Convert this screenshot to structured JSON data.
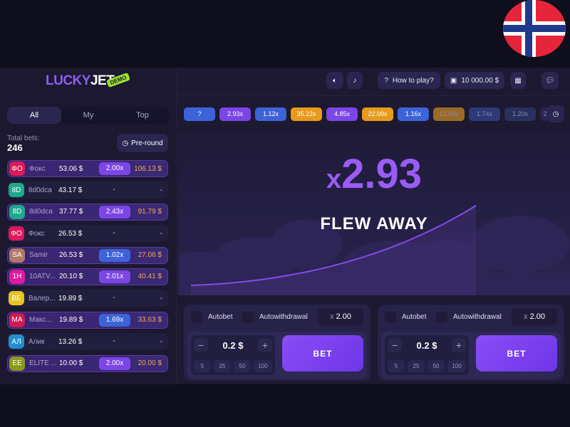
{
  "flag": {
    "name": "norway-flag",
    "colors": {
      "red": "#e5263a",
      "white": "#ffffff",
      "blue": "#1f3a8c"
    }
  },
  "logo": {
    "text_a": "LUCKY",
    "text_b": "JET",
    "badge": "DEMO"
  },
  "header": {
    "how_to_play": "How to play?",
    "balance": "10 000.00 $"
  },
  "left": {
    "tabs": [
      "All",
      "My",
      "Top"
    ],
    "total_bets_label": "Total bets:",
    "total_bets": "246",
    "preround": "Pre-round",
    "bets": [
      {
        "init": "ФО",
        "color": "#e0195a",
        "name": "Фокс",
        "amount": "53.06 $",
        "mult": "2.00x",
        "mult_color": "#7c45e6",
        "win": "106.13 $"
      },
      {
        "init": "8D",
        "color": "#1ea88c",
        "name": "8d0dca",
        "amount": "43.17 $",
        "mult": "-",
        "win": "-"
      },
      {
        "init": "8D",
        "color": "#1ea88c",
        "name": "8d0dca",
        "amount": "37.77 $",
        "mult": "2.43x",
        "mult_color": "#7c45e6",
        "win": "91.79 $"
      },
      {
        "init": "ФО",
        "color": "#e0195a",
        "name": "Фокс",
        "amount": "26.53 $",
        "mult": "-",
        "win": "-"
      },
      {
        "init": "SA",
        "color": "#b07a68",
        "name": "Samir",
        "amount": "26.53 $",
        "mult": "1.02x",
        "mult_color": "#3d63d8",
        "win": "27.06 $"
      },
      {
        "init": "1H",
        "color": "#e01aa0",
        "name": "10ATV...",
        "amount": "20.10 $",
        "mult": "2.01x",
        "mult_color": "#7c45e6",
        "win": "40.41 $"
      },
      {
        "init": "ВЕ",
        "color": "#e8c420",
        "name": "Валер...",
        "amount": "19.89 $",
        "mult": "-",
        "win": "-"
      },
      {
        "init": "МА",
        "color": "#d01a55",
        "name": "Макс...",
        "amount": "19.89 $",
        "mult": "1.69x",
        "mult_color": "#3d63d8",
        "win": "33.63 $"
      },
      {
        "init": "АЛ",
        "color": "#2290d0",
        "name": "Алик",
        "amount": "13.26 $",
        "mult": "-",
        "win": "-"
      },
      {
        "init": "EE",
        "color": "#8a9a1a",
        "name": "ELITE ...",
        "amount": "10.00 $",
        "mult": "2.00x",
        "mult_color": "#7c45e6",
        "win": "20.00 $"
      }
    ]
  },
  "history": [
    {
      "v": "?",
      "c": "#3d63d8"
    },
    {
      "v": "2.93x",
      "c": "#7c45e6"
    },
    {
      "v": "1.12x",
      "c": "#3d63d8"
    },
    {
      "v": "35.22x",
      "c": "#e89a1c"
    },
    {
      "v": "4.85x",
      "c": "#7c45e6"
    },
    {
      "v": "22.09x",
      "c": "#e89a1c"
    },
    {
      "v": "1.16x",
      "c": "#3d63d8"
    },
    {
      "v": "12.63x",
      "c": "#9a6a28"
    },
    {
      "v": "1.74x",
      "c": "#2d3a78"
    },
    {
      "v": "1.20x",
      "c": "#28305e"
    },
    {
      "v": "2",
      "c": "#2a2450"
    }
  ],
  "game": {
    "prefix": "x",
    "multiplier": "2.93",
    "status": "FLEW AWAY"
  },
  "panels": [
    {
      "autobet": "Autobet",
      "autowithdrawal": "Autowithdrawal",
      "x_prefix": "x",
      "x_value": "2.00",
      "stake": "0.2 $",
      "quick": [
        "5",
        "25",
        "50",
        "100"
      ],
      "bet": "BET"
    },
    {
      "autobet": "Autobet",
      "autowithdrawal": "Autowithdrawal",
      "x_prefix": "x",
      "x_value": "2.00",
      "stake": "0.2 $",
      "quick": [
        "5",
        "25",
        "50",
        "100"
      ],
      "bet": "BET"
    }
  ]
}
